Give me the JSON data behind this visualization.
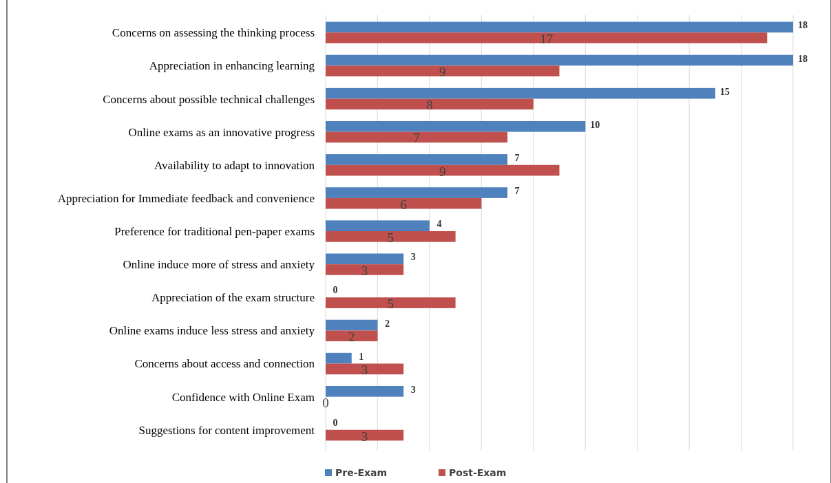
{
  "chart_data": {
    "type": "bar",
    "orientation": "horizontal",
    "categories": [
      "Concerns on assessing the thinking process",
      "Appreciation in enhancing learning",
      "Concerns about possible technical challenges",
      "Online exams as an innovative progress",
      "Availability to adapt to innovation",
      "Appreciation for Immediate feedback and convenience",
      "Preference for traditional pen-paper exams",
      "Online induce more of stress and anxiety",
      "Appreciation of the exam structure",
      "Online exams induce less stress and anxiety",
      "Concerns about access and connection",
      "Confidence with Online Exam",
      "Suggestions for content improvement"
    ],
    "series": [
      {
        "name": "Pre-Exam",
        "color": "#4f81bd",
        "values": [
          18,
          18,
          15,
          10,
          7,
          7,
          4,
          3,
          0,
          2,
          1,
          3,
          0
        ]
      },
      {
        "name": "Post-Exam",
        "color": "#c0504d",
        "values": [
          17,
          9,
          8,
          7,
          9,
          6,
          5,
          3,
          5,
          2,
          3,
          0,
          3
        ]
      }
    ],
    "xlim": [
      0,
      18
    ],
    "xticks": [
      {
        "value": 0,
        "label": null
      },
      {
        "value": 2,
        "label": null
      },
      {
        "value": 4,
        "label": null
      },
      {
        "value": 6,
        "label": null
      },
      {
        "value": 8,
        "label": null
      },
      {
        "value": 10,
        "label": null
      },
      {
        "value": 12,
        "label": null
      },
      {
        "value": 14,
        "label": null
      },
      {
        "value": 16,
        "label": null
      },
      {
        "value": 18,
        "label": null
      }
    ],
    "tick_labels": "y",
    "grid": "x",
    "legend": "bottom",
    "data_labels": true
  }
}
